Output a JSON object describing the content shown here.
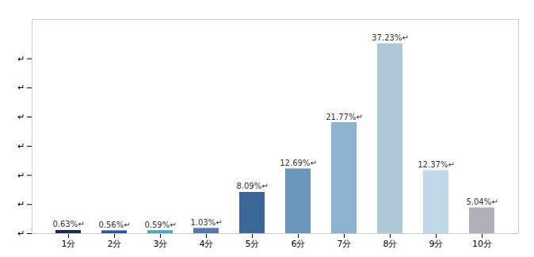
{
  "chart_data": {
    "type": "bar",
    "categories": [
      "1分",
      "2分",
      "3分",
      "4分",
      "5分",
      "6分",
      "7分",
      "8分",
      "9分",
      "10分"
    ],
    "values": [
      0.63,
      0.56,
      0.59,
      1.03,
      8.09,
      12.69,
      21.77,
      37.23,
      12.37,
      5.04
    ],
    "value_labels": [
      "0.63%↵",
      "0.56%↵",
      "0.59%↵",
      "1.03%↵",
      "8.09%↵",
      "12.69%↵",
      "21.77%↵",
      "37.23%↵",
      "12.37%↵",
      "5.04%↵"
    ],
    "colors": [
      "#1c2b4a",
      "#2e5a9c",
      "#4aa8b8",
      "#5577aa",
      "#3a6698",
      "#6b96bc",
      "#8db4ce",
      "#aec8d8",
      "#c0d8e8",
      "#b0b0b8"
    ],
    "ylim": [
      0,
      42
    ],
    "yticks": [
      {
        "value": 0,
        "label": "↵"
      },
      {
        "value": 5.71,
        "label": "↵"
      },
      {
        "value": 11.43,
        "label": "↵"
      },
      {
        "value": 17.14,
        "label": "↵"
      },
      {
        "value": 22.86,
        "label": "↵"
      },
      {
        "value": 28.57,
        "label": "↵"
      },
      {
        "value": 34.29,
        "label": "↵"
      }
    ],
    "data_labels": true,
    "grid": false
  }
}
